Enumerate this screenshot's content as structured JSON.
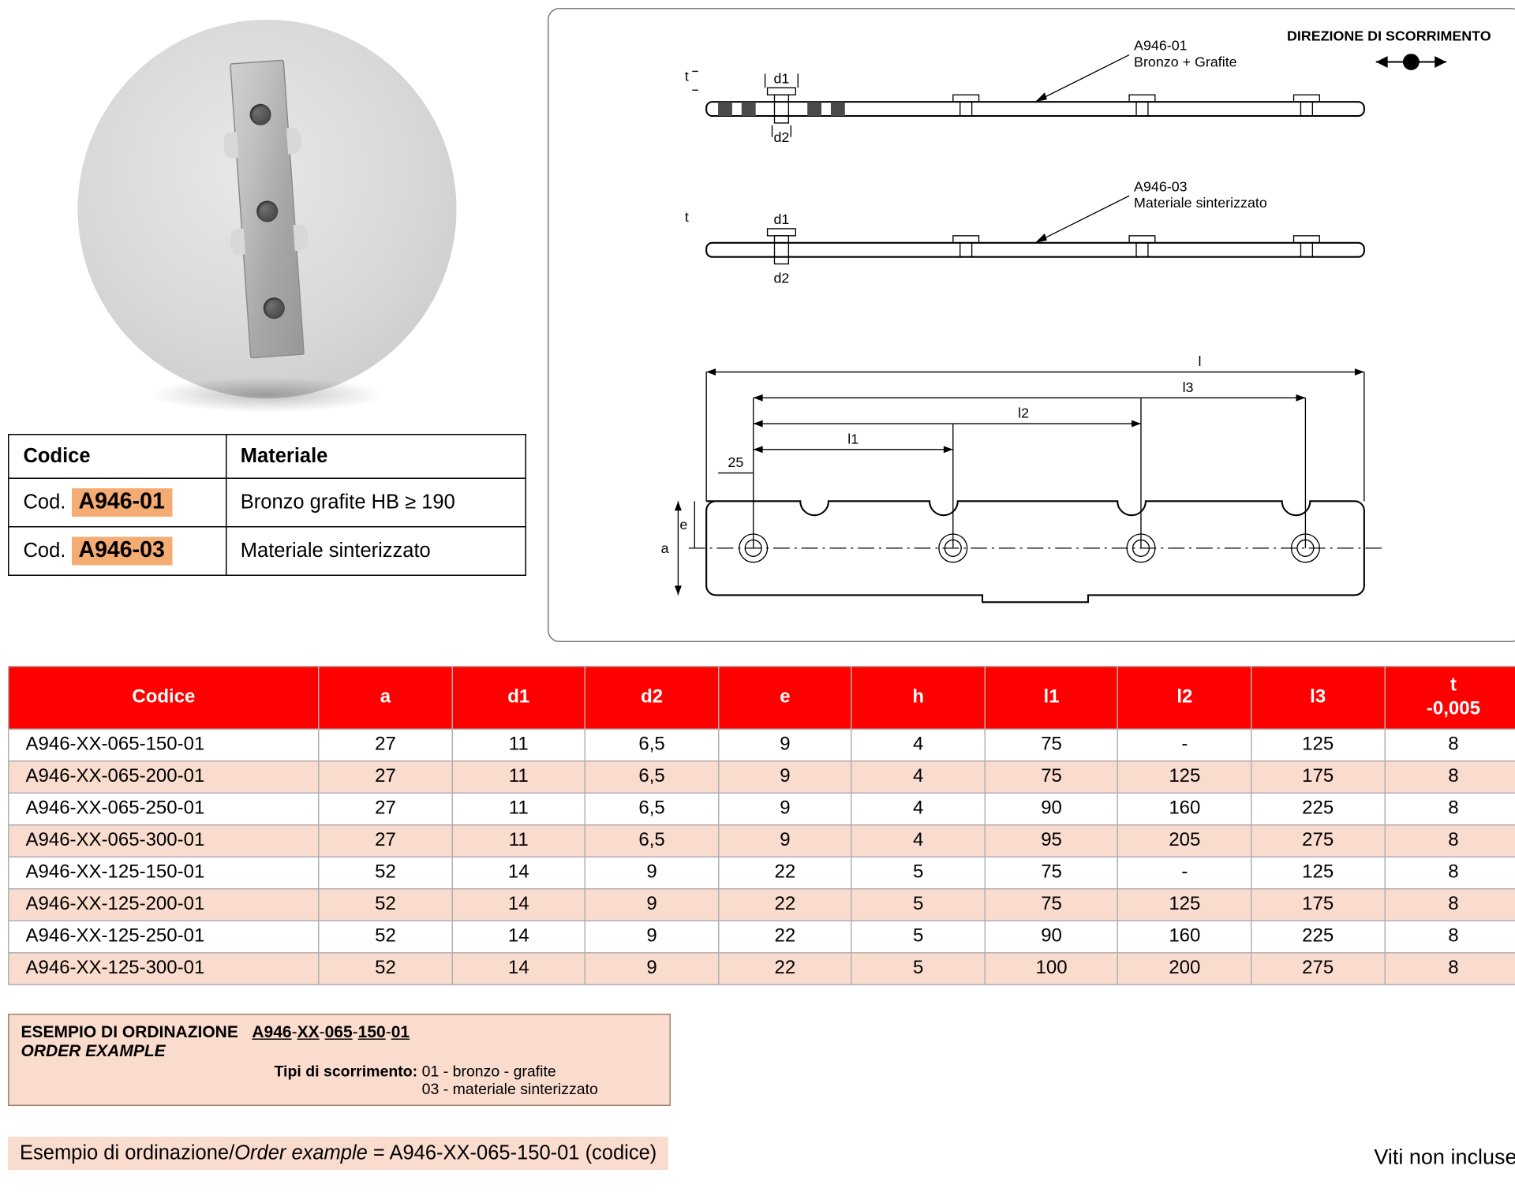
{
  "direction_label": "DIREZIONE DI SCORRIMENTO",
  "diagram_callouts": {
    "top": {
      "code": "A946-01",
      "desc": "Bronzo + Grafite"
    },
    "mid": {
      "code": "A946-03",
      "desc": "Materiale sinterizzato"
    }
  },
  "dim_labels": {
    "t": "t",
    "d1": "d1",
    "d2": "d2",
    "l": "l",
    "l1": "l1",
    "l2": "l2",
    "l3": "l3",
    "a": "a",
    "e": "e",
    "twentyfive": "25"
  },
  "material_table": {
    "headers": {
      "code": "Codice",
      "material": "Materiale"
    },
    "rows": [
      {
        "prefix": "Cod.",
        "code": "A946-01",
        "material": "Bronzo grafite HB ≥ 190"
      },
      {
        "prefix": "Cod.",
        "code": "A946-03",
        "material": "Materiale sinterizzato"
      }
    ]
  },
  "main_table": {
    "headers": [
      "Codice",
      "a",
      "d1",
      "d2",
      "e",
      "h",
      "l1",
      "l2",
      "l3",
      "t\n-0,005"
    ],
    "rows": [
      [
        "A946-XX-065-150-01",
        "27",
        "11",
        "6,5",
        "9",
        "4",
        "75",
        "-",
        "125",
        "8"
      ],
      [
        "A946-XX-065-200-01",
        "27",
        "11",
        "6,5",
        "9",
        "4",
        "75",
        "125",
        "175",
        "8"
      ],
      [
        "A946-XX-065-250-01",
        "27",
        "11",
        "6,5",
        "9",
        "4",
        "90",
        "160",
        "225",
        "8"
      ],
      [
        "A946-XX-065-300-01",
        "27",
        "11",
        "6,5",
        "9",
        "4",
        "95",
        "205",
        "275",
        "8"
      ],
      [
        "A946-XX-125-150-01",
        "52",
        "14",
        "9",
        "22",
        "5",
        "75",
        "-",
        "125",
        "8"
      ],
      [
        "A946-XX-125-200-01",
        "52",
        "14",
        "9",
        "22",
        "5",
        "75",
        "125",
        "175",
        "8"
      ],
      [
        "A946-XX-125-250-01",
        "52",
        "14",
        "9",
        "22",
        "5",
        "90",
        "160",
        "225",
        "8"
      ],
      [
        "A946-XX-125-300-01",
        "52",
        "14",
        "9",
        "22",
        "5",
        "100",
        "200",
        "275",
        "8"
      ]
    ],
    "col_widths_pct": [
      20.5,
      8.8,
      8.8,
      8.8,
      8.8,
      8.8,
      8.8,
      8.8,
      8.8,
      9.1
    ],
    "header_bg": "#ff0000",
    "header_fg": "#ffffff",
    "row_alt_bg": "#fadcce",
    "border_color": "#b0b0b0"
  },
  "order_box": {
    "title_it": "ESEMPIO DI ORDINAZIONE",
    "title_en": "ORDER EXAMPLE",
    "code_parts": [
      "A946",
      "XX",
      "065",
      "150",
      "01"
    ],
    "sub_label": "Tipi di scorrimento:",
    "sub_lines": [
      "01 - bronzo - grafite",
      "03 - materiale sinterizzato"
    ],
    "bg": "#fadcce"
  },
  "example_bar": {
    "it": "Esempio di ordinazione/",
    "en": "Order example",
    "rest": " = A946-XX-065-150-01 (codice)",
    "bg": "#fadcce"
  },
  "footnote": "Viti non incluse.",
  "colors": {
    "accent_red": "#ff0000",
    "accent_peach": "#fadcce",
    "chip_orange": "#f4ac72",
    "circle_grey": "#d8d8d8",
    "panel_border": "#7a7a7a"
  }
}
